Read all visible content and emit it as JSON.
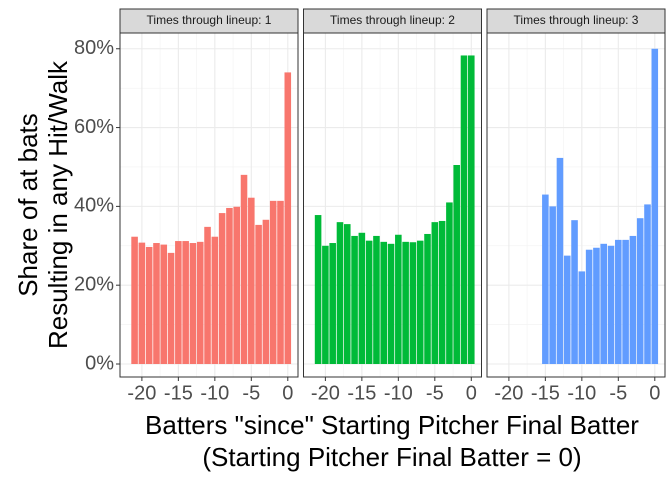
{
  "chart_data": {
    "type": "bar",
    "ylabel": [
      "Share of at bats",
      "Resulting in any Hit/Walk"
    ],
    "xlabel": [
      "Batters \"since\" Starting Pitcher Final Batter",
      "(Starting Pitcher Final Batter = 0)"
    ],
    "ylim": [
      -3.3,
      84
    ],
    "yticks": [
      {
        "value": 0,
        "label": "0%"
      },
      {
        "value": 20,
        "label": "20%"
      },
      {
        "value": 40,
        "label": "40%"
      },
      {
        "value": 60,
        "label": "60%"
      },
      {
        "value": 80,
        "label": "80%"
      }
    ],
    "xlim": [
      -23,
      1.4
    ],
    "xticks": [
      -20,
      -15,
      -10,
      -5,
      0
    ],
    "grid": true,
    "panels": [
      {
        "title": "Times through lineup: 1",
        "color": "#F8766D",
        "x": [
          -21,
          -20,
          -19,
          -18,
          -17,
          -16,
          -15,
          -14,
          -13,
          -12,
          -11,
          -10,
          -9,
          -8,
          -7,
          -6,
          -5,
          -4,
          -3,
          -2,
          -1,
          0
        ],
        "values": [
          32.3,
          30.8,
          29.7,
          30.7,
          30.3,
          28.2,
          31.2,
          31.2,
          30.7,
          31,
          34.8,
          32.3,
          38.3,
          39.6,
          39.9,
          48,
          42.2,
          35.3,
          36.6,
          41.4,
          41.4,
          74
        ]
      },
      {
        "title": "Times through lineup: 2",
        "color": "#00BA38",
        "x": [
          -21,
          -20,
          -19,
          -18,
          -17,
          -16,
          -15,
          -14,
          -13,
          -12,
          -11,
          -10,
          -9,
          -8,
          -7,
          -6,
          -5,
          -4,
          -3,
          -2,
          -1,
          0
        ],
        "values": [
          37.8,
          30,
          30.7,
          36,
          35.5,
          32.5,
          33.3,
          31.3,
          32.5,
          31,
          30.5,
          32.8,
          31,
          30.9,
          31.3,
          33,
          36,
          36.3,
          41,
          50.5,
          78.3,
          78.3
        ]
      },
      {
        "title": "Times through lineup: 3",
        "color": "#619CFF",
        "x": [
          -15,
          -14,
          -13,
          -12,
          -11,
          -10,
          -9,
          -8,
          -7,
          -6,
          -5,
          -4,
          -3,
          -2,
          -1,
          0
        ],
        "values": [
          43,
          40,
          52.3,
          27.5,
          36.5,
          23.5,
          29,
          29.5,
          30.5,
          30,
          31.5,
          31.5,
          32.5,
          37,
          40.5,
          80
        ]
      }
    ]
  }
}
